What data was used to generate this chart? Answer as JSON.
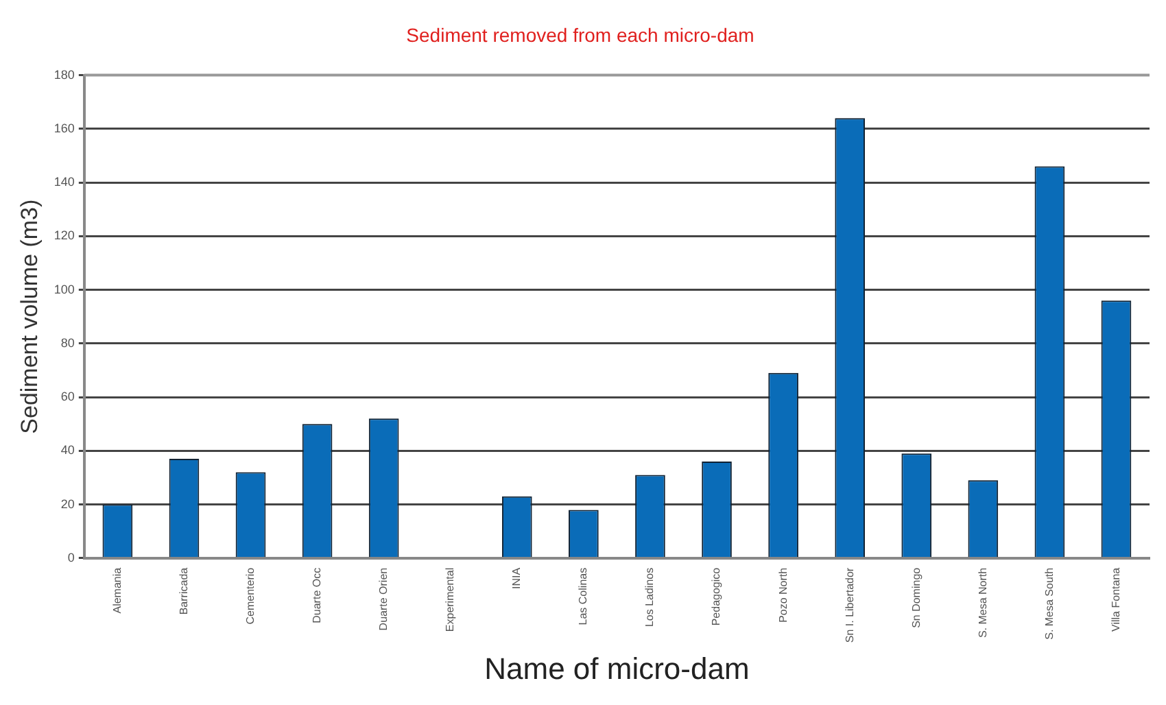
{
  "chart_data": {
    "type": "bar",
    "title": "Sediment removed from each micro-dam",
    "xlabel": "Name of micro-dam",
    "ylabel": "Sediment volume (m3)",
    "categories": [
      "Alemania",
      "Barricada",
      "Cementerio",
      "Duarte Occ",
      "Duarte Orien",
      "Experimental",
      "INIA",
      "Las Colinas",
      "Los Ladinos",
      "Pedagogico",
      "Pozo North",
      "Sn I. Libertador",
      "Sn Domingo",
      "S. Mesa North",
      "S. Mesa South",
      "Villa Fontana"
    ],
    "values": [
      20,
      37,
      32,
      50,
      52,
      null,
      23,
      18,
      31,
      36,
      69,
      164,
      39,
      29,
      146,
      96
    ],
    "color": "#0a6cb8",
    "ylim": [
      0,
      180
    ],
    "yticks": [
      0,
      20,
      40,
      60,
      80,
      100,
      120,
      140,
      160,
      180
    ],
    "grid": "y",
    "legend": false
  }
}
